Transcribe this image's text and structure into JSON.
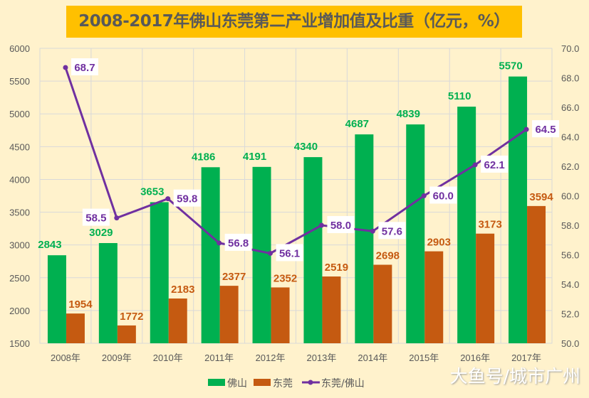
{
  "chart_data": {
    "type": "bar+line",
    "title": "2008-2017年佛山东莞第二产业增加值及比重（亿元，%）",
    "categories": [
      "2008年",
      "2009年",
      "2010年",
      "2011年",
      "2012年",
      "2013年",
      "2014年",
      "2015年",
      "2016年",
      "2017年"
    ],
    "series": [
      {
        "name": "佛山",
        "type": "bar",
        "axis": "left",
        "color": "#00B050",
        "values": [
          2843,
          3029,
          3653,
          4186,
          4191,
          4340,
          4687,
          4839,
          5110,
          5570
        ]
      },
      {
        "name": "东莞",
        "type": "bar",
        "axis": "left",
        "color": "#C55A11",
        "values": [
          1954,
          1772,
          2183,
          2377,
          2352,
          2519,
          2698,
          2903,
          3173,
          3594
        ]
      },
      {
        "name": "东莞/佛山",
        "type": "line",
        "axis": "right",
        "color": "#7030A0",
        "values": [
          68.7,
          58.5,
          59.8,
          56.8,
          56.1,
          58.0,
          57.6,
          60.0,
          62.1,
          64.5
        ]
      }
    ],
    "ylim_left": [
      1500,
      6000
    ],
    "yticks_left": [
      "1500",
      "2000",
      "2500",
      "3000",
      "3500",
      "4000",
      "4500",
      "5000",
      "5500",
      "6000"
    ],
    "ylim_right": [
      50,
      70
    ],
    "yticks_right": [
      "50.0",
      "52.0",
      "54.0",
      "56.0",
      "58.0",
      "60.0",
      "62.0",
      "64.0",
      "66.0",
      "68.0",
      "70.0"
    ],
    "grid": true,
    "legend": "bottom"
  },
  "watermark": "大鱼号/城市广州"
}
